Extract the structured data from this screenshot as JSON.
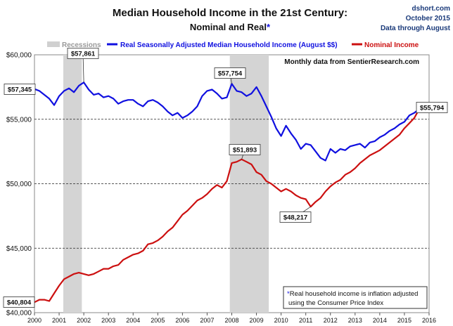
{
  "chart_data": {
    "type": "line",
    "title": "Median Household Income in the 21st Century:",
    "subtitle": "Nominal and Real",
    "subtitle_mark": "*",
    "source": {
      "site": "dshort.com",
      "date": "October 2015",
      "note": "Data through August"
    },
    "data_source_note": "Monthly data from SentierResearch.com",
    "footnote": {
      "mark": "*",
      "line1": "Real household  income is inflation adjusted",
      "line2": "using  the Consumer Price Index"
    },
    "legend": {
      "placement": "top",
      "recessions_label": "Recessions",
      "items": [
        {
          "name": "Real Seasonally Adjusted Median Household Income (August $$)",
          "color": "#1010e0"
        },
        {
          "name": "Nominal Income",
          "color": "#cc1010"
        }
      ]
    },
    "x_ticks": [
      "2000",
      "2001",
      "2002",
      "2003",
      "2004",
      "2005",
      "2006",
      "2007",
      "2008",
      "2009",
      "2010",
      "2011",
      "2012",
      "2013",
      "2014",
      "2015",
      "2016"
    ],
    "y_ticks": [
      "$40,000",
      "$45,000",
      "$50,000",
      "$55,000",
      "$60,000"
    ],
    "xlim": [
      2000,
      2016
    ],
    "ylim": [
      40000,
      60000
    ],
    "grid": {
      "horizontal": true,
      "style": "dashed"
    },
    "recessions": [
      [
        2001.17,
        2001.92
      ],
      [
        2007.92,
        2009.5
      ]
    ],
    "series": [
      {
        "name": "Real Seasonally Adjusted Median Household Income (August $$)",
        "color": "#1010e0",
        "x": [
          2000.0,
          2000.2,
          2000.4,
          2000.6,
          2000.8,
          2001.0,
          2001.2,
          2001.4,
          2001.6,
          2001.8,
          2002.0,
          2002.2,
          2002.4,
          2002.6,
          2002.8,
          2003.0,
          2003.2,
          2003.4,
          2003.6,
          2003.8,
          2004.0,
          2004.2,
          2004.4,
          2004.6,
          2004.8,
          2005.0,
          2005.2,
          2005.4,
          2005.6,
          2005.8,
          2006.0,
          2006.2,
          2006.4,
          2006.6,
          2006.8,
          2007.0,
          2007.2,
          2007.4,
          2007.6,
          2007.8,
          2008.0,
          2008.2,
          2008.4,
          2008.6,
          2008.8,
          2009.0,
          2009.2,
          2009.4,
          2009.6,
          2009.8,
          2010.0,
          2010.2,
          2010.4,
          2010.6,
          2010.8,
          2011.0,
          2011.2,
          2011.4,
          2011.6,
          2011.8,
          2012.0,
          2012.2,
          2012.4,
          2012.6,
          2012.8,
          2013.0,
          2013.2,
          2013.4,
          2013.6,
          2013.8,
          2014.0,
          2014.2,
          2014.4,
          2014.6,
          2014.8,
          2015.0,
          2015.2,
          2015.4,
          2015.6
        ],
        "values": [
          57345,
          57200,
          56900,
          56600,
          56100,
          56800,
          57200,
          57400,
          57100,
          57600,
          57861,
          57300,
          56900,
          57000,
          56700,
          56800,
          56600,
          56200,
          56400,
          56500,
          56500,
          56200,
          56000,
          56400,
          56500,
          56300,
          56000,
          55600,
          55300,
          55500,
          55100,
          55300,
          55600,
          56000,
          56800,
          57200,
          57300,
          57000,
          56600,
          56700,
          57754,
          57200,
          57100,
          56800,
          57000,
          57500,
          56800,
          56000,
          55200,
          54300,
          53700,
          54500,
          53900,
          53400,
          52700,
          53100,
          53000,
          52500,
          52000,
          51800,
          52700,
          52400,
          52700,
          52600,
          52900,
          53000,
          53100,
          52800,
          53200,
          53300,
          53600,
          53800,
          54100,
          54300,
          54600,
          54800,
          55300,
          55500,
          55794
        ]
      },
      {
        "name": "Nominal Income",
        "color": "#cc1010",
        "x": [
          2000.0,
          2000.2,
          2000.4,
          2000.6,
          2000.8,
          2001.0,
          2001.2,
          2001.4,
          2001.6,
          2001.8,
          2002.0,
          2002.2,
          2002.4,
          2002.6,
          2002.8,
          2003.0,
          2003.2,
          2003.4,
          2003.6,
          2003.8,
          2004.0,
          2004.2,
          2004.4,
          2004.6,
          2004.8,
          2005.0,
          2005.2,
          2005.4,
          2005.6,
          2005.8,
          2006.0,
          2006.2,
          2006.4,
          2006.6,
          2006.8,
          2007.0,
          2007.2,
          2007.4,
          2007.6,
          2007.8,
          2008.0,
          2008.2,
          2008.4,
          2008.6,
          2008.8,
          2009.0,
          2009.2,
          2009.4,
          2009.6,
          2009.8,
          2010.0,
          2010.2,
          2010.4,
          2010.6,
          2010.8,
          2011.0,
          2011.2,
          2011.4,
          2011.6,
          2011.8,
          2012.0,
          2012.2,
          2012.4,
          2012.6,
          2012.8,
          2013.0,
          2013.2,
          2013.4,
          2013.6,
          2013.8,
          2014.0,
          2014.2,
          2014.4,
          2014.6,
          2014.8,
          2015.0,
          2015.2,
          2015.4,
          2015.6
        ],
        "values": [
          40804,
          41000,
          41000,
          40900,
          41500,
          42100,
          42600,
          42800,
          43000,
          43100,
          43000,
          42900,
          43000,
          43200,
          43400,
          43400,
          43600,
          43700,
          44100,
          44300,
          44500,
          44600,
          44800,
          45300,
          45400,
          45600,
          45900,
          46300,
          46600,
          47100,
          47600,
          47900,
          48300,
          48700,
          48900,
          49200,
          49600,
          49900,
          49700,
          50200,
          51600,
          51700,
          51893,
          51700,
          51500,
          50900,
          50700,
          50200,
          50000,
          49700,
          49400,
          49600,
          49400,
          49100,
          48900,
          48800,
          48217,
          48600,
          48900,
          49400,
          49800,
          50100,
          50300,
          50700,
          50900,
          51200,
          51600,
          51900,
          52200,
          52400,
          52600,
          52900,
          53200,
          53500,
          53800,
          54300,
          54700,
          55100,
          55794
        ]
      }
    ],
    "annotations": [
      {
        "label": "$57,345",
        "series": 0,
        "x": 2000.0,
        "y": 57345
      },
      {
        "label": "$57,861",
        "series": 0,
        "x": 2002.0,
        "y": 57861
      },
      {
        "label": "$57,754",
        "series": 0,
        "x": 2008.0,
        "y": 57754
      },
      {
        "label": "$55,794",
        "series": 0,
        "x": 2015.6,
        "y": 55794
      },
      {
        "label": "$51,893",
        "series": 1,
        "x": 2008.4,
        "y": 51893
      },
      {
        "label": "$48,217",
        "series": 1,
        "x": 2011.2,
        "y": 48217
      },
      {
        "label": "$40,804",
        "series": 1,
        "x": 2000.0,
        "y": 40804
      }
    ]
  }
}
